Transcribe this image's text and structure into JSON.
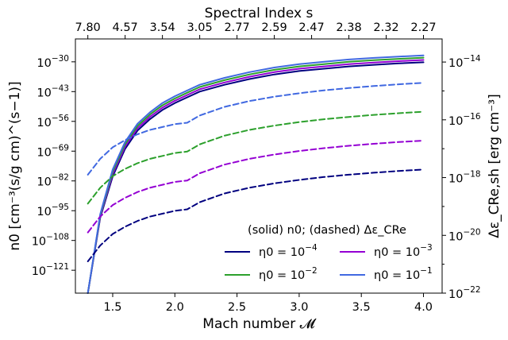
{
  "chart_data": {
    "type": "line",
    "title": "",
    "xlabel": "Mach number 𝓜",
    "x_top_label": "Spectral Index s",
    "ylabel_left": "n0 [cm⁻³(s/g cm)^(s−1)]",
    "ylabel_right": "Δε_CRe,sh [erg cm⁻³]",
    "xlim": [
      1.2,
      4.15
    ],
    "x_ticks": [
      1.5,
      2.0,
      2.5,
      3.0,
      3.5,
      4.0
    ],
    "x_tick_labels": [
      "1.5",
      "2.0",
      "2.5",
      "3.0",
      "3.5",
      "4.0"
    ],
    "top_tick_mach": [
      1.3,
      1.6,
      1.9,
      2.2,
      2.5,
      2.8,
      3.1,
      3.4,
      3.7,
      4.0
    ],
    "top_tick_labels": [
      "7.80",
      "4.57",
      "3.54",
      "3.05",
      "2.77",
      "2.59",
      "2.47",
      "2.38",
      "2.32",
      "2.27"
    ],
    "left_scale": "log",
    "left_ylim_exp": [
      -131,
      -20
    ],
    "left_ticks_exp": [
      -121,
      -108,
      -95,
      -82,
      -69,
      -56,
      -43,
      -30
    ],
    "left_tick_labels": [
      "10^-121",
      "10^-108",
      "10^-95",
      "10^-82",
      "10^-69",
      "10^-56",
      "10^-43",
      "10^-30"
    ],
    "right_scale": "log",
    "right_ylim_exp": [
      -22,
      -13.2
    ],
    "right_ticks_exp": [
      -22,
      -20,
      -18,
      -16,
      -14
    ],
    "right_tick_labels": [
      "10^-22",
      "10^-20",
      "10^-18",
      "10^-16",
      "10^-14"
    ],
    "legend_title": "(solid) n0; (dashed) Δε_CRe",
    "legend_loc": "lower-right",
    "x": [
      1.3,
      1.4,
      1.5,
      1.6,
      1.7,
      1.8,
      1.9,
      2.0,
      2.1,
      2.2,
      2.4,
      2.6,
      2.8,
      3.0,
      3.2,
      3.4,
      3.6,
      3.8,
      4.0
    ],
    "series": [
      {
        "name": "η0 = 10^-4",
        "color": "#00007f",
        "axis": "left",
        "style": "solid",
        "values": [
          -131,
          -98,
          -80,
          -68,
          -60,
          -55,
          -51,
          -48,
          -45.5,
          -43,
          -40,
          -37.5,
          -35.5,
          -34,
          -33,
          -32,
          -31.3,
          -30.7,
          -30.2
        ]
      },
      {
        "name": "η0 = 10^-3",
        "color": "#9400d3",
        "axis": "left",
        "style": "solid",
        "values": [
          -131,
          -97.5,
          -79,
          -67,
          -59,
          -54,
          -50,
          -47,
          -44.5,
          -42,
          -39,
          -36.5,
          -34.5,
          -33,
          -32,
          -31,
          -30.3,
          -29.7,
          -29.2
        ]
      },
      {
        "name": "η0 = 10^-2",
        "color": "#2ca02c",
        "axis": "left",
        "style": "solid",
        "values": [
          -131,
          -97,
          -78,
          -66,
          -58,
          -53,
          -49,
          -46,
          -43.5,
          -41,
          -38,
          -35.5,
          -33.5,
          -32,
          -31,
          -30,
          -29.3,
          -28.7,
          -28.2
        ]
      },
      {
        "name": "η0 = 10^-1",
        "color": "#4169e1",
        "axis": "left",
        "style": "solid",
        "values": [
          -131,
          -96.5,
          -77,
          -65,
          -57,
          -52,
          -48,
          -45,
          -42.5,
          -40,
          -37,
          -34.5,
          -32.5,
          -31,
          -30,
          -29,
          -28.3,
          -27.7,
          -27.2
        ]
      },
      {
        "name": "Δε_CRe (η0 = 10^-4)",
        "color": "#00007f",
        "axis": "right",
        "style": "dashed",
        "values": [
          -20.9,
          -20.35,
          -19.95,
          -19.7,
          -19.5,
          -19.35,
          -19.25,
          -19.15,
          -19.1,
          -18.85,
          -18.55,
          -18.35,
          -18.2,
          -18.08,
          -17.98,
          -17.9,
          -17.83,
          -17.77,
          -17.72
        ]
      },
      {
        "name": "Δε_CRe (η0 = 10^-3)",
        "color": "#9400d3",
        "axis": "right",
        "style": "dashed",
        "values": [
          -19.9,
          -19.35,
          -18.95,
          -18.7,
          -18.5,
          -18.35,
          -18.25,
          -18.15,
          -18.1,
          -17.85,
          -17.55,
          -17.35,
          -17.2,
          -17.08,
          -16.98,
          -16.9,
          -16.83,
          -16.77,
          -16.72
        ]
      },
      {
        "name": "Δε_CRe (η0 = 10^-2)",
        "color": "#2ca02c",
        "axis": "right",
        "style": "dashed",
        "values": [
          -18.9,
          -18.35,
          -17.95,
          -17.7,
          -17.5,
          -17.35,
          -17.25,
          -17.15,
          -17.1,
          -16.85,
          -16.55,
          -16.35,
          -16.2,
          -16.08,
          -15.98,
          -15.9,
          -15.83,
          -15.77,
          -15.72
        ]
      },
      {
        "name": "Δε_CRe (η0 = 10^-1)",
        "color": "#4169e1",
        "axis": "right",
        "style": "dashed",
        "values": [
          -17.9,
          -17.35,
          -16.95,
          -16.7,
          -16.5,
          -16.35,
          -16.25,
          -16.15,
          -16.1,
          -15.85,
          -15.55,
          -15.35,
          -15.2,
          -15.08,
          -14.98,
          -14.9,
          -14.83,
          -14.77,
          -14.72
        ]
      }
    ]
  }
}
